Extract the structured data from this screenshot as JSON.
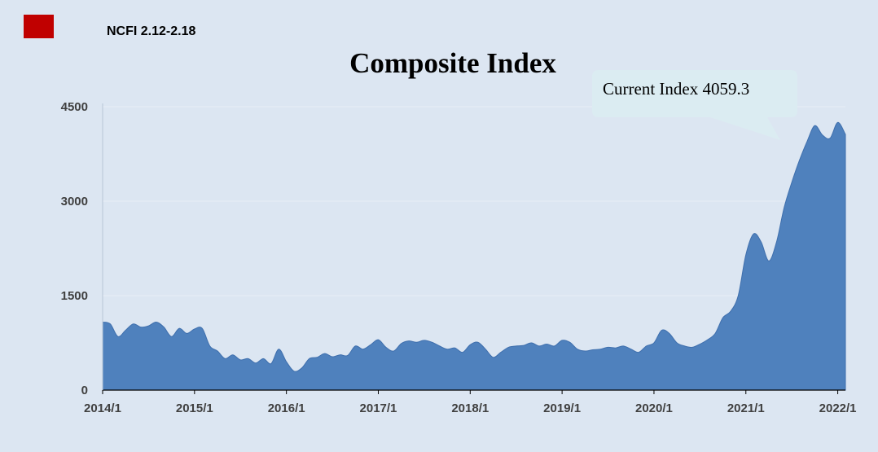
{
  "legend": {
    "label": "NCFI 2.12-2.18",
    "color": "#c00000"
  },
  "callout": {
    "text": "Current Index 4059.3"
  },
  "colors": {
    "background": "#dce6f2",
    "area_fill": "#4f81bd",
    "area_stroke": "#3f6fad",
    "callout_fill": "#dbecf2",
    "gridline": "#e8eef5"
  },
  "chart_data": {
    "type": "area",
    "title": "Composite Index",
    "xlabel": "",
    "ylabel": "",
    "ylim": [
      0,
      4500
    ],
    "xlim": [
      "2014-01",
      "2022-02"
    ],
    "y_ticks": [
      "0",
      "1500",
      "3000",
      "4500"
    ],
    "x_ticks": [
      "2014/1",
      "2015/1",
      "2016/1",
      "2017/1",
      "2018/1",
      "2019/1",
      "2020/1",
      "2021/1",
      "2022/1"
    ],
    "grid": true,
    "legend_position": "top-left",
    "series": [
      {
        "name": "NCFI 2.12-2.18",
        "x": [
          "2014-01",
          "2014-02",
          "2014-03",
          "2014-04",
          "2014-05",
          "2014-06",
          "2014-07",
          "2014-08",
          "2014-09",
          "2014-10",
          "2014-11",
          "2014-12",
          "2015-01",
          "2015-02",
          "2015-03",
          "2015-04",
          "2015-05",
          "2015-06",
          "2015-07",
          "2015-08",
          "2015-09",
          "2015-10",
          "2015-11",
          "2015-12",
          "2016-01",
          "2016-02",
          "2016-03",
          "2016-04",
          "2016-05",
          "2016-06",
          "2016-07",
          "2016-08",
          "2016-09",
          "2016-10",
          "2016-11",
          "2016-12",
          "2017-01",
          "2017-02",
          "2017-03",
          "2017-04",
          "2017-05",
          "2017-06",
          "2017-07",
          "2017-08",
          "2017-09",
          "2017-10",
          "2017-11",
          "2017-12",
          "2018-01",
          "2018-02",
          "2018-03",
          "2018-04",
          "2018-05",
          "2018-06",
          "2018-07",
          "2018-08",
          "2018-09",
          "2018-10",
          "2018-11",
          "2018-12",
          "2019-01",
          "2019-02",
          "2019-03",
          "2019-04",
          "2019-05",
          "2019-06",
          "2019-07",
          "2019-08",
          "2019-09",
          "2019-10",
          "2019-11",
          "2019-12",
          "2020-01",
          "2020-02",
          "2020-03",
          "2020-04",
          "2020-05",
          "2020-06",
          "2020-07",
          "2020-08",
          "2020-09",
          "2020-10",
          "2020-11",
          "2020-12",
          "2021-01",
          "2021-02",
          "2021-03",
          "2021-04",
          "2021-05",
          "2021-06",
          "2021-07",
          "2021-08",
          "2021-09",
          "2021-10",
          "2021-11",
          "2021-12",
          "2022-01",
          "2022-02"
        ],
        "values": [
          1080,
          1050,
          850,
          950,
          1050,
          1000,
          1020,
          1080,
          1000,
          850,
          980,
          900,
          970,
          980,
          700,
          620,
          500,
          560,
          480,
          500,
          430,
          500,
          420,
          650,
          450,
          300,
          350,
          500,
          520,
          580,
          530,
          560,
          550,
          700,
          650,
          720,
          800,
          680,
          620,
          740,
          780,
          760,
          790,
          760,
          700,
          650,
          670,
          600,
          720,
          760,
          650,
          520,
          600,
          680,
          700,
          710,
          750,
          700,
          730,
          700,
          790,
          760,
          650,
          620,
          640,
          650,
          680,
          670,
          700,
          650,
          600,
          700,
          750,
          950,
          900,
          750,
          700,
          680,
          730,
          800,
          900,
          1150,
          1250,
          1500,
          2150,
          2480,
          2350,
          2050,
          2350,
          2900,
          3300,
          3650,
          3950,
          4200,
          4050,
          4000,
          4250,
          4059.3
        ]
      }
    ]
  }
}
